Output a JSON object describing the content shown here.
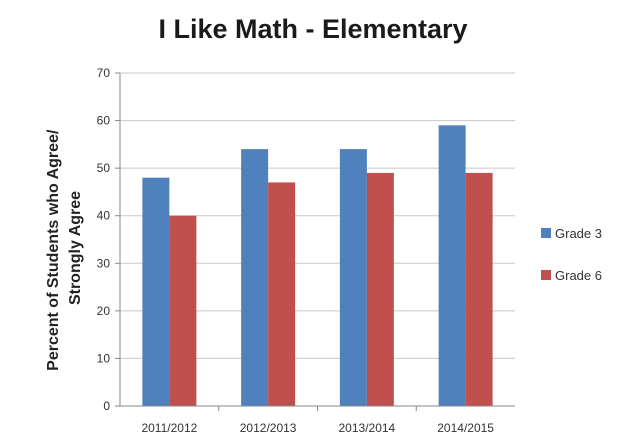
{
  "chart_data": {
    "type": "bar",
    "title": "I Like Math - Elementary",
    "ylabel": [
      "Percent of Students who Agree/",
      "Strongly Agree"
    ],
    "xlabel": "",
    "categories": [
      "2011/2012",
      "2012/2013",
      "2013/2014",
      "2014/2015"
    ],
    "series": [
      {
        "name": "Grade 3",
        "color": "#4F81BD",
        "values": [
          48,
          54,
          54,
          59
        ]
      },
      {
        "name": "Grade 6",
        "color": "#C0504D",
        "values": [
          40,
          47,
          49,
          49
        ]
      }
    ],
    "ylim": [
      0,
      70
    ],
    "yticks": [
      0,
      10,
      20,
      30,
      40,
      50,
      60,
      70
    ],
    "grid": true,
    "legend": "right"
  }
}
